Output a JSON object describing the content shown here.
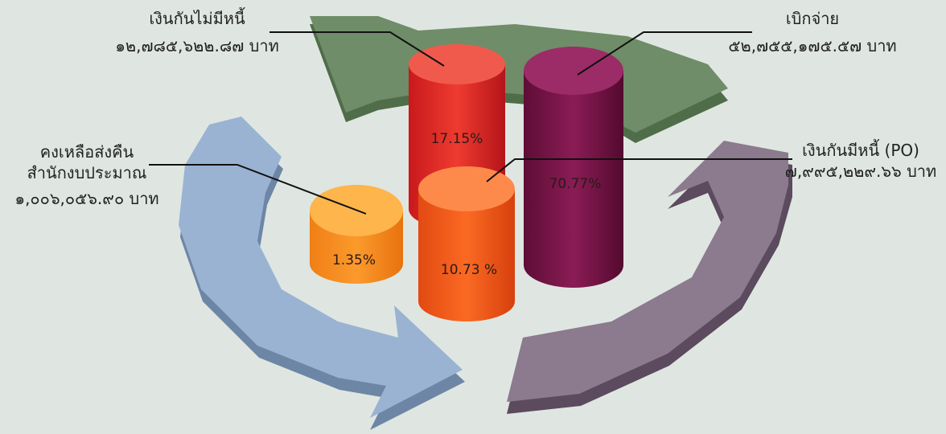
{
  "items": [
    {
      "label_lines": [
        "เงินกันไม่มีหนี้"
      ],
      "amount": "๑๒,๗๘๕,๖๒๒.๘๗ บาท",
      "percent": "17.15%"
    },
    {
      "label_lines": [
        "เบิกจ่าย"
      ],
      "amount": "๕๒,๗๕๕,๑๗๕.๕๗ บาท",
      "percent": "70.77%"
    },
    {
      "label_lines": [
        "เงินกันมีหนี้ (PO)"
      ],
      "amount": "๗,๙๙๕,๒๒๙.๖๖ บาท",
      "percent": "10.73 %"
    },
    {
      "label_lines": [
        "คงเหลือส่งคืน",
        "สำนักงบประมาณ"
      ],
      "amount": "๑,๐๐๖,๐๕๖.๙๐ บาท",
      "percent": "1.35%"
    }
  ]
}
